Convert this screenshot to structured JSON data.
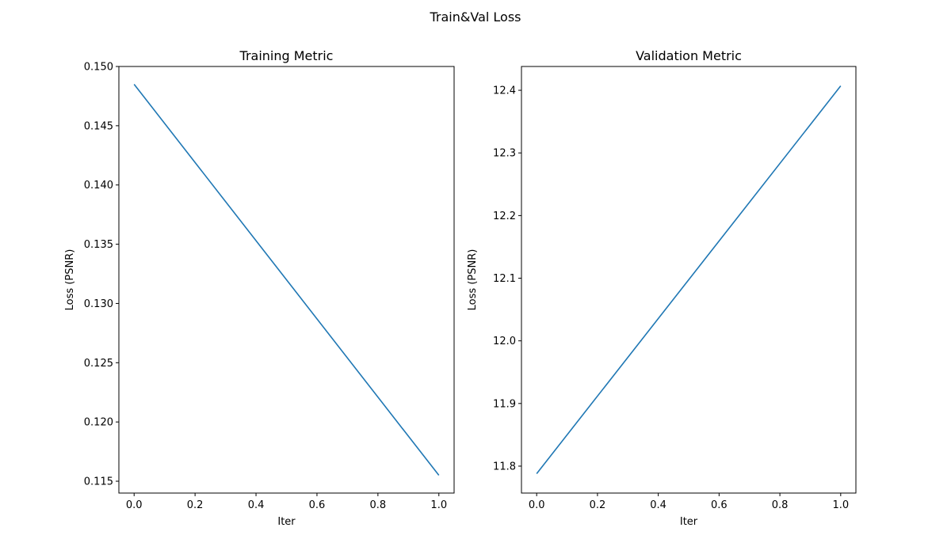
{
  "figure": {
    "suptitle": "Train&Val Loss"
  },
  "colors": {
    "line": "#1f77b4",
    "axes": "#000000",
    "background": "#ffffff"
  },
  "chart_data": [
    {
      "type": "line",
      "title": "Training Metric",
      "xlabel": "Iter",
      "ylabel": "Loss (PSNR)",
      "x": [
        0,
        1
      ],
      "series": [
        {
          "values": [
            0.1485,
            0.1155
          ]
        }
      ],
      "xlim": [
        -0.05,
        1.05
      ],
      "ylim": [
        0.114,
        0.15
      ],
      "xticks": [
        0.0,
        0.2,
        0.4,
        0.6,
        0.8,
        1.0
      ],
      "xtick_labels": [
        "0.0",
        "0.2",
        "0.4",
        "0.6",
        "0.8",
        "1.0"
      ],
      "yticks": [
        0.115,
        0.12,
        0.125,
        0.13,
        0.135,
        0.14,
        0.145,
        0.15
      ],
      "ytick_labels": [
        "0.115",
        "0.120",
        "0.125",
        "0.130",
        "0.135",
        "0.140",
        "0.145",
        "0.150"
      ],
      "grid": false,
      "legend": false
    },
    {
      "type": "line",
      "title": "Validation Metric",
      "xlabel": "Iter",
      "ylabel": "Loss (PSNR)",
      "x": [
        0,
        1
      ],
      "series": [
        {
          "values": [
            11.788,
            12.407
          ]
        }
      ],
      "xlim": [
        -0.05,
        1.05
      ],
      "ylim": [
        11.757,
        12.438
      ],
      "xticks": [
        0.0,
        0.2,
        0.4,
        0.6,
        0.8,
        1.0
      ],
      "xtick_labels": [
        "0.0",
        "0.2",
        "0.4",
        "0.6",
        "0.8",
        "1.0"
      ],
      "yticks": [
        11.8,
        11.9,
        12.0,
        12.1,
        12.2,
        12.3,
        12.4
      ],
      "ytick_labels": [
        "11.8",
        "11.9",
        "12.0",
        "12.1",
        "12.2",
        "12.3",
        "12.4"
      ],
      "grid": false,
      "legend": false
    }
  ]
}
